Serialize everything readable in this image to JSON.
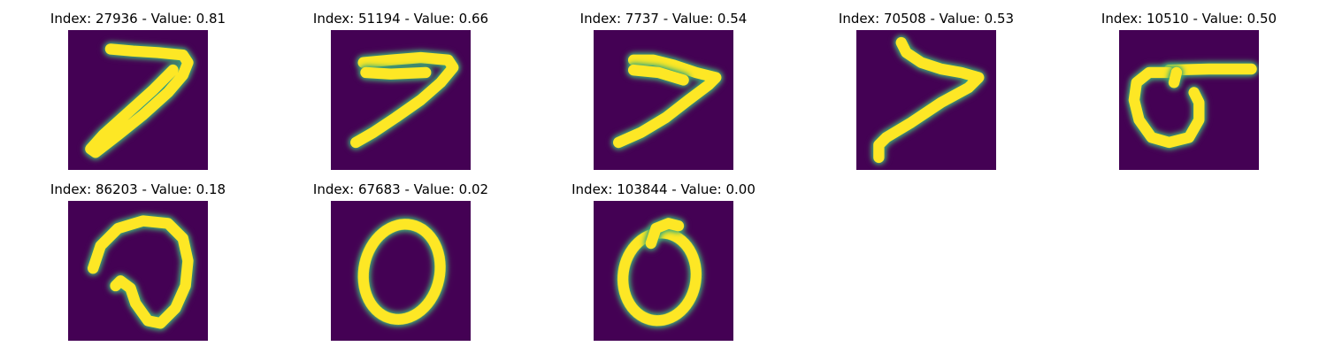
{
  "colors": {
    "background": "#440154",
    "stroke_halo": "#21918c",
    "stroke_mid": "#5ec962",
    "stroke_core": "#fde725"
  },
  "panels": [
    {
      "title": "Index: 27936 - Value: 0.81",
      "digit": "7"
    },
    {
      "title": "Index: 51194 - Value: 0.66",
      "digit": "7"
    },
    {
      "title": "Index: 7737 - Value: 0.54",
      "digit": "7"
    },
    {
      "title": "Index: 70508 - Value: 0.53",
      "digit": "7"
    },
    {
      "title": "Index: 10510 - Value: 0.50",
      "digit": "6"
    },
    {
      "title": "Index: 86203 - Value: 0.18",
      "digit": "0"
    },
    {
      "title": "Index: 67683 - Value: 0.02",
      "digit": "0"
    },
    {
      "title": "Index: 103844 - Value: 0.00",
      "digit": "0"
    }
  ]
}
